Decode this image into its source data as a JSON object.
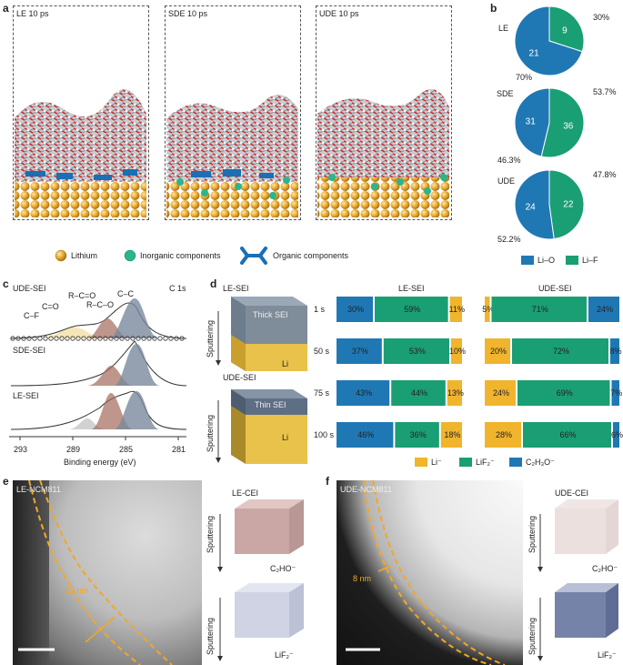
{
  "panel_letters": {
    "a": "a",
    "b": "b",
    "c": "c",
    "d": "d",
    "e": "e",
    "f": "f"
  },
  "panel_a": {
    "boxes": [
      "LE 10 ps",
      "SDE 10 ps",
      "UDE 10 ps"
    ],
    "legend": [
      "Lithium",
      "Inorganic components",
      "Organic components"
    ]
  },
  "panel_b": {
    "pies": [
      {
        "name": "LE",
        "li_o": 21,
        "li_f": 9,
        "li_o_pct": "70%",
        "li_f_pct": "30%"
      },
      {
        "name": "SDE",
        "li_o": 31,
        "li_f": 36,
        "li_o_pct": "46.3%",
        "li_f_pct": "53.7%"
      },
      {
        "name": "UDE",
        "li_o": 24,
        "li_f": 22,
        "li_o_pct": "52.2%",
        "li_f_pct": "47.8%"
      }
    ],
    "legend": [
      "Li–O",
      "Li–F"
    ],
    "colors": {
      "li_o": "#1f78b4",
      "li_f": "#1a9e74"
    }
  },
  "panel_c": {
    "header_left": "UDE-SEI",
    "header_right": "C 1s",
    "labels": {
      "cc": "C–C",
      "rco": "R–C–O",
      "rcoo": "R–C=O",
      "co": "C=O",
      "cf": "C–F"
    },
    "spectra": [
      "UDE-SEI",
      "SDE-SEI",
      "LE-SEI"
    ],
    "ticks": [
      "293",
      "289",
      "285",
      "281"
    ],
    "xlabel": "Binding energy (eV)"
  },
  "panel_d": {
    "cube_top_title": "LE-SEI",
    "cube_top_text": "Thick SEI",
    "cube_top_li": "Li",
    "cube_bot_title": "UDE-SEI",
    "cube_bot_text": "Thin SEI",
    "cube_bot_li": "Li",
    "sputtering": "Sputtering",
    "le_title": "LE-SEI",
    "ude_title": "UDE-SEI",
    "rows": [
      "1 s",
      "50 s",
      "75 s",
      "100 s"
    ],
    "le": [
      [
        30,
        59,
        11
      ],
      [
        37,
        53,
        10
      ],
      [
        43,
        44,
        13
      ],
      [
        46,
        36,
        18
      ]
    ],
    "ude": [
      [
        5,
        71,
        24
      ],
      [
        20,
        72,
        8
      ],
      [
        24,
        69,
        7
      ],
      [
        28,
        66,
        6
      ]
    ],
    "le_labels": [
      [
        "30%",
        "59%",
        "11%"
      ],
      [
        "37%",
        "53%",
        "10%"
      ],
      [
        "43%",
        "44%",
        "13%"
      ],
      [
        "46%",
        "36%",
        "18%"
      ]
    ],
    "ude_labels": [
      [
        "5%",
        "71%",
        "24%"
      ],
      [
        "20%",
        "72%",
        "8%"
      ],
      [
        "24%",
        "69%",
        "7%"
      ],
      [
        "28%",
        "66%",
        "6%"
      ]
    ],
    "legend": [
      "Li⁻",
      "LiF₂⁻",
      "C₂H₃O⁻"
    ],
    "colors": {
      "li": "#f0b42d",
      "lif": "#1a9e74",
      "c2h3o": "#1f78b4"
    }
  },
  "panel_e": {
    "img_label": "LE-NCM811",
    "thickness": "22 nm",
    "cei_title": "LE-CEI",
    "sputtering": "Sputtering",
    "cube1": "C₂HO⁻",
    "cube2": "LiF₂⁻"
  },
  "panel_f": {
    "img_label": "UDE-NCM811",
    "thickness": "8 nm",
    "cei_title": "UDE-CEI",
    "sputtering": "Sputtering",
    "cube1": "C₂HO⁻",
    "cube2": "LiF₂⁻"
  }
}
